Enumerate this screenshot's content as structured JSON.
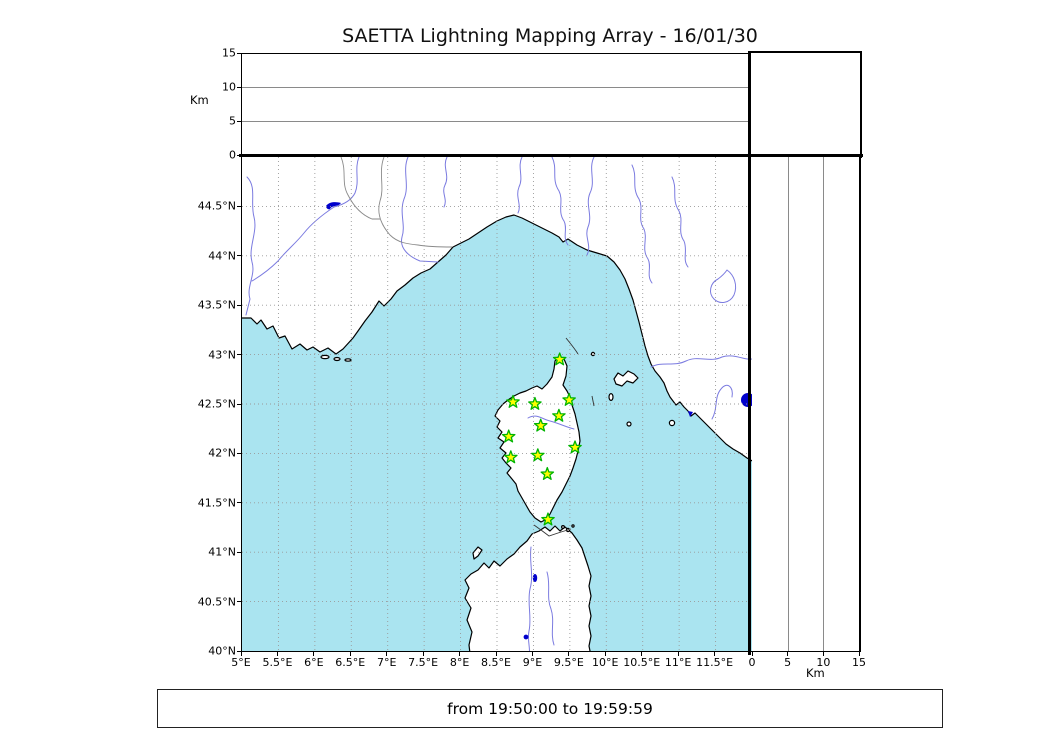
{
  "title": "SAETTA Lightning Mapping Array - 16/01/30",
  "footer": "from 19:50:00 to 19:59:59",
  "alt_lon_panel": {
    "ylabel": "Km",
    "yticks": [
      {
        "v": 0,
        "label": "0"
      },
      {
        "v": 5,
        "label": "5"
      },
      {
        "v": 10,
        "label": "10"
      },
      {
        "v": 15,
        "label": "15"
      }
    ],
    "ylim": [
      0,
      15
    ]
  },
  "alt_lat_panel": {
    "xlabel": "Km",
    "xticks": [
      {
        "v": 0,
        "label": "0"
      },
      {
        "v": 5,
        "label": "5"
      },
      {
        "v": 10,
        "label": "10"
      },
      {
        "v": 15,
        "label": "15"
      }
    ],
    "xlim": [
      0,
      15
    ]
  },
  "map_panel": {
    "lon_lim": [
      5,
      12
    ],
    "lat_lim": [
      40,
      45
    ],
    "lon_ticks": [
      {
        "v": 5,
        "label": "5°E"
      },
      {
        "v": 5.5,
        "label": "5.5°E"
      },
      {
        "v": 6,
        "label": "6°E"
      },
      {
        "v": 6.5,
        "label": "6.5°E"
      },
      {
        "v": 7,
        "label": "7°E"
      },
      {
        "v": 7.5,
        "label": "7.5°E"
      },
      {
        "v": 8,
        "label": "8°E"
      },
      {
        "v": 8.5,
        "label": "8.5°E"
      },
      {
        "v": 9,
        "label": "9°E"
      },
      {
        "v": 9.5,
        "label": "9.5°E"
      },
      {
        "v": 10,
        "label": "10°E"
      },
      {
        "v": 10.5,
        "label": "10.5°E"
      },
      {
        "v": 11,
        "label": "11°E"
      },
      {
        "v": 11.5,
        "label": "11.5°E"
      }
    ],
    "lat_ticks": [
      {
        "v": 40,
        "label": "40°N"
      },
      {
        "v": 40.5,
        "label": "40.5°N"
      },
      {
        "v": 41,
        "label": "41°N"
      },
      {
        "v": 41.5,
        "label": "41.5°N"
      },
      {
        "v": 42,
        "label": "42°N"
      },
      {
        "v": 42.5,
        "label": "42.5°N"
      },
      {
        "v": 43,
        "label": "43°N"
      },
      {
        "v": 43.5,
        "label": "43.5°N"
      },
      {
        "v": 44,
        "label": "44°N"
      },
      {
        "v": 44.5,
        "label": "44.5°N"
      }
    ]
  },
  "colors": {
    "sea": "#aae4f0",
    "land": "#ffffff",
    "coast": "#000000",
    "river": "#7b7be0",
    "border_line": "#8a8a8a",
    "lake": "#0000cc",
    "grid": "#999999",
    "station_fill": "#fdfd00",
    "station_stroke": "#00b400"
  },
  "chart_data": {
    "type": "scatter",
    "title": "SAETTA Lightning Mapping Array - 16/01/30",
    "time_window": {
      "from": "19:50:00",
      "to": "19:59:59"
    },
    "panels": {
      "altitude_vs_longitude": {
        "position": "top",
        "ylabel": "Km",
        "ylim": [
          0,
          15
        ],
        "yticks": [
          0,
          5,
          10,
          15
        ],
        "gridlines_at": [
          5,
          10
        ],
        "points": []
      },
      "map": {
        "position": "center",
        "lon_lim_deg_east": [
          5,
          12
        ],
        "lat_lim_deg_north": [
          40,
          45
        ],
        "grid_step_deg": 0.5,
        "lightning_points": []
      },
      "altitude_vs_latitude": {
        "position": "right",
        "xlabel": "Km",
        "xlim": [
          0,
          15
        ],
        "xticks": [
          0,
          5,
          10,
          15
        ],
        "gridlines_at": [
          5,
          10
        ],
        "points": []
      }
    },
    "stations_lon_lat": [
      [
        9.36,
        42.95
      ],
      [
        8.72,
        42.52
      ],
      [
        9.02,
        42.5
      ],
      [
        9.49,
        42.54
      ],
      [
        9.35,
        42.38
      ],
      [
        9.1,
        42.28
      ],
      [
        8.66,
        42.17
      ],
      [
        9.57,
        42.06
      ],
      [
        9.06,
        41.98
      ],
      [
        8.69,
        41.96
      ],
      [
        9.19,
        41.79
      ],
      [
        9.2,
        41.33
      ]
    ],
    "station_marker": "star",
    "annotation": "green star markers = SAETTA network stations on Corsica; no lightning sources plotted in this time window"
  }
}
